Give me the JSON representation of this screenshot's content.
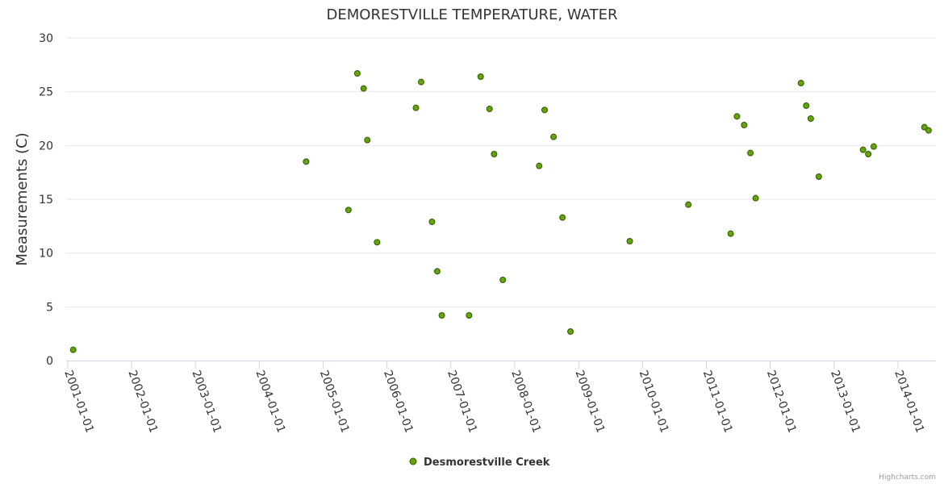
{
  "chart_data": {
    "type": "scatter",
    "title": "DEMORESTVILLE TEMPERATURE, WATER",
    "ylabel": "Measurements (C)",
    "xlabel": "",
    "ylim": [
      0,
      30
    ],
    "yticks": [
      0,
      5,
      10,
      15,
      20,
      25,
      30
    ],
    "xlim": [
      "2001-01-01",
      "2014-07-01"
    ],
    "xticks": [
      "2001-01-01",
      "2002-01-01",
      "2003-01-01",
      "2004-01-01",
      "2005-01-01",
      "2006-01-01",
      "2007-01-01",
      "2008-01-01",
      "2009-01-01",
      "2010-01-01",
      "2011-01-01",
      "2012-01-01",
      "2013-01-01",
      "2014-01-01"
    ],
    "legend": "bottom-center",
    "series": [
      {
        "name": "Desmorestville Creek",
        "color": "#63a40a",
        "points": [
          {
            "x": "2001-02-01",
            "y": 1.0
          },
          {
            "x": "2004-09-25",
            "y": 18.5
          },
          {
            "x": "2005-05-25",
            "y": 14.0
          },
          {
            "x": "2005-07-15",
            "y": 26.7
          },
          {
            "x": "2005-08-20",
            "y": 25.3
          },
          {
            "x": "2005-09-10",
            "y": 20.5
          },
          {
            "x": "2005-11-05",
            "y": 11.0
          },
          {
            "x": "2006-06-15",
            "y": 23.5
          },
          {
            "x": "2006-07-15",
            "y": 25.9
          },
          {
            "x": "2006-09-15",
            "y": 12.9
          },
          {
            "x": "2006-10-15",
            "y": 8.3
          },
          {
            "x": "2006-11-10",
            "y": 4.2
          },
          {
            "x": "2007-04-15",
            "y": 4.2
          },
          {
            "x": "2007-06-20",
            "y": 26.4
          },
          {
            "x": "2007-08-10",
            "y": 23.4
          },
          {
            "x": "2007-09-05",
            "y": 19.2
          },
          {
            "x": "2007-10-25",
            "y": 7.5
          },
          {
            "x": "2008-05-20",
            "y": 18.1
          },
          {
            "x": "2008-06-20",
            "y": 23.3
          },
          {
            "x": "2008-08-10",
            "y": 20.8
          },
          {
            "x": "2008-09-30",
            "y": 13.3
          },
          {
            "x": "2008-11-15",
            "y": 2.7
          },
          {
            "x": "2009-10-20",
            "y": 11.1
          },
          {
            "x": "2010-09-20",
            "y": 14.5
          },
          {
            "x": "2011-05-20",
            "y": 11.8
          },
          {
            "x": "2011-06-25",
            "y": 22.7
          },
          {
            "x": "2011-08-05",
            "y": 21.9
          },
          {
            "x": "2011-09-10",
            "y": 19.3
          },
          {
            "x": "2011-10-10",
            "y": 15.1
          },
          {
            "x": "2012-06-25",
            "y": 25.8
          },
          {
            "x": "2012-07-25",
            "y": 23.7
          },
          {
            "x": "2012-08-20",
            "y": 22.5
          },
          {
            "x": "2012-10-05",
            "y": 17.1
          },
          {
            "x": "2013-06-15",
            "y": 19.6
          },
          {
            "x": "2013-07-15",
            "y": 19.2
          },
          {
            "x": "2013-08-15",
            "y": 19.9
          },
          {
            "x": "2014-06-01",
            "y": 21.7
          },
          {
            "x": "2014-06-25",
            "y": 21.4
          }
        ]
      }
    ]
  },
  "credits": "Highcharts.com"
}
